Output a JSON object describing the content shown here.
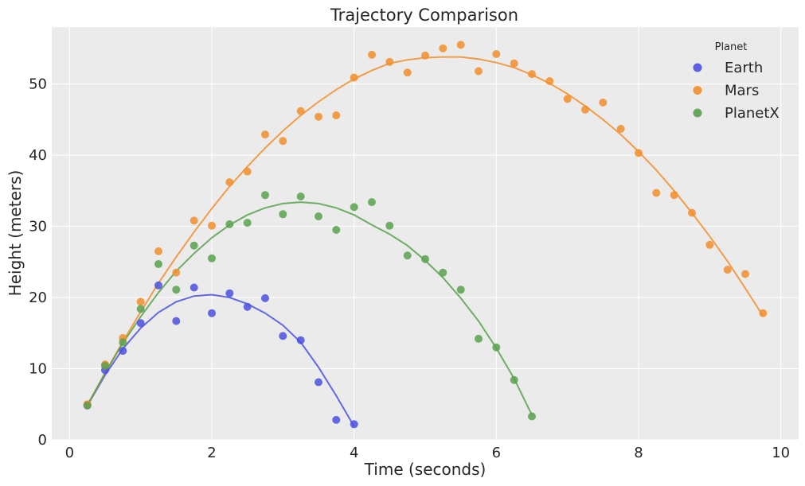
{
  "chart_data": {
    "type": "scatter",
    "title": "Trajectory Comparison",
    "xlabel": "Time (seconds)",
    "ylabel": "Height (meters)",
    "xlim": [
      -0.25,
      10.25
    ],
    "ylim": [
      0,
      58
    ],
    "xticks": [
      0,
      2,
      4,
      6,
      8,
      10
    ],
    "yticks": [
      0,
      10,
      20,
      30,
      40,
      50
    ],
    "grid": true,
    "background": "#ebebeb",
    "legend": {
      "title": "Planet",
      "placement": "top-right"
    },
    "series": [
      {
        "name": "Earth",
        "color": "#4c50e0",
        "points": [
          [
            0.25,
            4.9
          ],
          [
            0.5,
            9.8
          ],
          [
            0.75,
            12.5
          ],
          [
            1.0,
            16.4
          ],
          [
            1.25,
            21.7
          ],
          [
            1.5,
            16.7
          ],
          [
            1.75,
            21.4
          ],
          [
            2.0,
            17.8
          ],
          [
            2.25,
            20.6
          ],
          [
            2.5,
            18.7
          ],
          [
            2.75,
            19.9
          ],
          [
            3.0,
            14.6
          ],
          [
            3.25,
            14.0
          ],
          [
            3.5,
            8.1
          ],
          [
            3.75,
            2.8
          ],
          [
            4.0,
            2.2
          ]
        ],
        "fit": [
          [
            0.25,
            4.8
          ],
          [
            0.5,
            9.1
          ],
          [
            0.75,
            12.8
          ],
          [
            1.0,
            15.7
          ],
          [
            1.25,
            17.9
          ],
          [
            1.5,
            19.4
          ],
          [
            1.75,
            20.2
          ],
          [
            2.0,
            20.4
          ],
          [
            2.25,
            20.0
          ],
          [
            2.5,
            19.1
          ],
          [
            2.75,
            17.8
          ],
          [
            3.0,
            16.1
          ],
          [
            3.25,
            13.7
          ],
          [
            3.5,
            10.2
          ],
          [
            3.75,
            6.2
          ],
          [
            4.0,
            1.9
          ]
        ]
      },
      {
        "name": "Mars",
        "color": "#f28e2b",
        "points": [
          [
            0.25,
            5.0
          ],
          [
            0.5,
            10.6
          ],
          [
            0.75,
            14.3
          ],
          [
            1.0,
            19.4
          ],
          [
            1.25,
            26.5
          ],
          [
            1.5,
            23.5
          ],
          [
            1.75,
            30.8
          ],
          [
            2.0,
            30.1
          ],
          [
            2.25,
            36.2
          ],
          [
            2.5,
            37.7
          ],
          [
            2.75,
            42.9
          ],
          [
            3.0,
            42.0
          ],
          [
            3.25,
            46.2
          ],
          [
            3.5,
            45.4
          ],
          [
            3.75,
            45.6
          ],
          [
            4.0,
            50.9
          ],
          [
            4.25,
            54.1
          ],
          [
            4.5,
            53.1
          ],
          [
            4.75,
            51.6
          ],
          [
            5.0,
            54.0
          ],
          [
            5.25,
            55.0
          ],
          [
            5.5,
            55.5
          ],
          [
            5.75,
            51.8
          ],
          [
            6.0,
            54.2
          ],
          [
            6.25,
            52.9
          ],
          [
            6.5,
            51.4
          ],
          [
            6.75,
            50.4
          ],
          [
            7.0,
            47.9
          ],
          [
            7.25,
            46.4
          ],
          [
            7.5,
            47.4
          ],
          [
            7.75,
            43.7
          ],
          [
            8.0,
            40.3
          ],
          [
            8.25,
            34.7
          ],
          [
            8.5,
            34.4
          ],
          [
            8.75,
            31.9
          ],
          [
            9.0,
            27.4
          ],
          [
            9.25,
            23.9
          ],
          [
            9.5,
            23.3
          ],
          [
            9.75,
            17.8
          ]
        ],
        "fit": [
          [
            0.25,
            4.8
          ],
          [
            0.5,
            9.4
          ],
          [
            0.75,
            13.8
          ],
          [
            1.0,
            18.0
          ],
          [
            1.25,
            22.0
          ],
          [
            1.5,
            25.7
          ],
          [
            1.75,
            29.2
          ],
          [
            2.0,
            32.5
          ],
          [
            2.25,
            35.6
          ],
          [
            2.5,
            38.4
          ],
          [
            2.75,
            41.0
          ],
          [
            3.0,
            43.4
          ],
          [
            3.25,
            45.6
          ],
          [
            3.5,
            47.5
          ],
          [
            3.75,
            49.2
          ],
          [
            4.0,
            50.7
          ],
          [
            4.25,
            51.9
          ],
          [
            4.5,
            52.9
          ],
          [
            4.75,
            53.4
          ],
          [
            5.0,
            53.7
          ],
          [
            5.25,
            53.8
          ],
          [
            5.5,
            53.8
          ],
          [
            5.75,
            53.5
          ],
          [
            6.0,
            53.0
          ],
          [
            6.25,
            52.3
          ],
          [
            6.5,
            51.3
          ],
          [
            6.75,
            50.1
          ],
          [
            7.0,
            48.6
          ],
          [
            7.25,
            46.9
          ],
          [
            7.5,
            45.0
          ],
          [
            7.75,
            42.9
          ],
          [
            8.0,
            40.5
          ],
          [
            8.25,
            37.9
          ],
          [
            8.5,
            35.0
          ],
          [
            8.75,
            31.9
          ],
          [
            9.0,
            28.6
          ],
          [
            9.25,
            25.1
          ],
          [
            9.5,
            21.3
          ],
          [
            9.75,
            17.4
          ]
        ]
      },
      {
        "name": "PlanetX",
        "color": "#59a14f",
        "points": [
          [
            0.25,
            4.8
          ],
          [
            0.5,
            10.4
          ],
          [
            0.75,
            13.7
          ],
          [
            1.0,
            18.4
          ],
          [
            1.25,
            24.7
          ],
          [
            1.5,
            21.1
          ],
          [
            1.75,
            27.3
          ],
          [
            2.0,
            25.5
          ],
          [
            2.25,
            30.3
          ],
          [
            2.5,
            30.5
          ],
          [
            2.75,
            34.4
          ],
          [
            3.0,
            31.7
          ],
          [
            3.25,
            34.2
          ],
          [
            3.5,
            31.4
          ],
          [
            3.75,
            29.5
          ],
          [
            4.0,
            32.7
          ],
          [
            4.25,
            33.4
          ],
          [
            4.5,
            30.1
          ],
          [
            4.75,
            25.9
          ],
          [
            5.0,
            25.4
          ],
          [
            5.25,
            23.5
          ],
          [
            5.5,
            21.1
          ],
          [
            5.75,
            14.2
          ],
          [
            6.0,
            13.0
          ],
          [
            6.25,
            8.4
          ],
          [
            6.5,
            3.3
          ]
        ],
        "fit": [
          [
            0.25,
            4.9
          ],
          [
            0.5,
            9.4
          ],
          [
            0.75,
            13.6
          ],
          [
            1.0,
            17.3
          ],
          [
            1.25,
            20.7
          ],
          [
            1.5,
            23.7
          ],
          [
            1.75,
            26.2
          ],
          [
            2.0,
            28.4
          ],
          [
            2.25,
            30.2
          ],
          [
            2.5,
            31.6
          ],
          [
            2.75,
            32.6
          ],
          [
            3.0,
            33.2
          ],
          [
            3.25,
            33.4
          ],
          [
            3.5,
            33.2
          ],
          [
            3.75,
            32.6
          ],
          [
            4.0,
            31.6
          ],
          [
            4.25,
            30.2
          ],
          [
            4.5,
            28.9
          ],
          [
            4.75,
            27.3
          ],
          [
            5.0,
            25.2
          ],
          [
            5.25,
            22.8
          ],
          [
            5.5,
            19.9
          ],
          [
            5.75,
            16.7
          ],
          [
            6.0,
            12.9
          ],
          [
            6.25,
            8.6
          ],
          [
            6.5,
            3.5
          ]
        ]
      }
    ]
  }
}
